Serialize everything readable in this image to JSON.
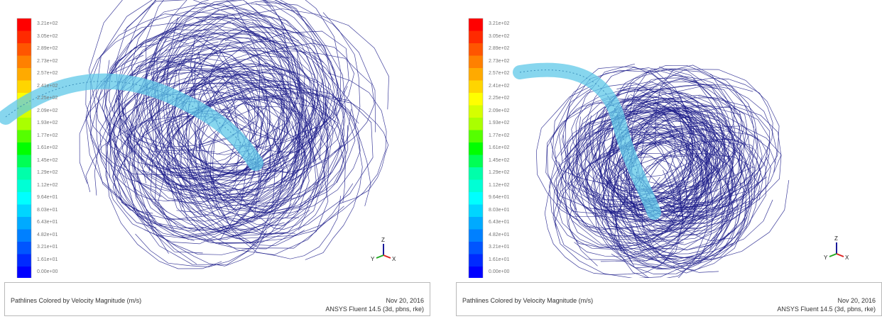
{
  "panels": [
    {
      "colorbar_labels": [
        "3.21e+02",
        "3.05e+02",
        "2.89e+02",
        "2.73e+02",
        "2.57e+02",
        "2.41e+02",
        "2.25e+02",
        "2.09e+02",
        "1.93e+02",
        "1.77e+02",
        "1.61e+02",
        "1.45e+02",
        "1.29e+02",
        "1.12e+02",
        "9.64e+01",
        "8.03e+01",
        "6.43e+01",
        "4.82e+01",
        "3.21e+01",
        "1.61e+01",
        "0.00e+00"
      ],
      "caption": "Pathlines Colored by Velocity Magnitude (m/s)",
      "date": "Nov 20, 2016",
      "solver": "ANSYS Fluent 14.5 (3d, pbns, rke)",
      "axes": {
        "x": "X",
        "y": "Y",
        "z": "Z"
      }
    },
    {
      "colorbar_labels": [
        "3.21e+02",
        "3.05e+02",
        "2.89e+02",
        "2.73e+02",
        "2.57e+02",
        "2.41e+02",
        "2.25e+02",
        "2.09e+02",
        "1.93e+02",
        "1.77e+02",
        "1.61e+02",
        "1.45e+02",
        "1.29e+02",
        "1.12e+02",
        "9.64e+01",
        "8.03e+01",
        "6.43e+01",
        "4.82e+01",
        "3.21e+01",
        "1.61e+01",
        "0.00e+00"
      ],
      "caption": "Pathlines Colored by Velocity Magnitude (m/s)",
      "date": "Nov 20, 2016",
      "solver": "ANSYS Fluent 14.5 (3d, pbns, rke)",
      "axes": {
        "x": "X",
        "y": "Y",
        "z": "Z"
      }
    }
  ],
  "colorbar_colors": [
    "#ff0000",
    "#ff2a00",
    "#ff5500",
    "#ff8000",
    "#ffaa00",
    "#ffd500",
    "#ffff00",
    "#d5ff00",
    "#aaff00",
    "#55ff00",
    "#00ff00",
    "#00ff55",
    "#00ffaa",
    "#00ffd5",
    "#00ffff",
    "#00d5ff",
    "#00aaff",
    "#0080ff",
    "#0055ff",
    "#002aff",
    "#0000ff"
  ],
  "pathline_color": "#1c1c8a",
  "tube_color": "#5fc8e8"
}
